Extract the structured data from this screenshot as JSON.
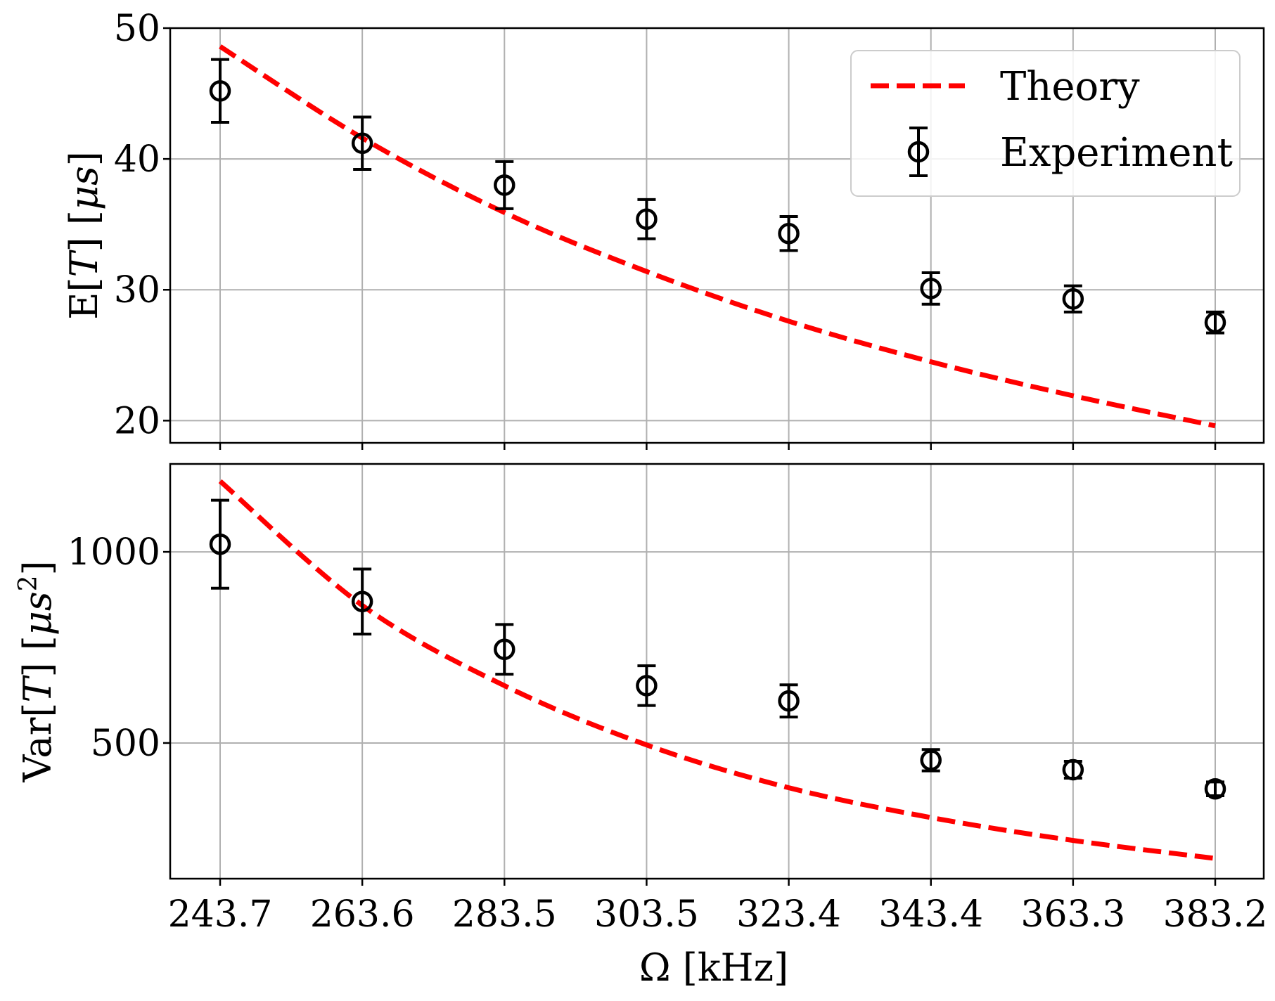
{
  "chart_data": [
    {
      "type": "scatter",
      "panel": "top",
      "ylabel": "E[T] [μs]",
      "ylim": [
        18.3,
        50
      ],
      "yticks": [
        20,
        30,
        40,
        50
      ],
      "ytick_labels": [
        "20",
        "30",
        "40",
        "50"
      ],
      "grid": true,
      "legend_position": "top-right",
      "x": [
        243.7,
        263.6,
        283.5,
        303.5,
        323.4,
        343.4,
        363.3,
        383.2
      ],
      "series": [
        {
          "name": "Theory",
          "kind": "line",
          "style": "dashed",
          "color": "#ff0000",
          "x": [
            243.7,
            263.6,
            283.5,
            303.5,
            323.4,
            343.4,
            363.3,
            383.2
          ],
          "y": [
            48.6,
            41.6,
            35.9,
            31.4,
            27.6,
            24.5,
            21.9,
            19.6
          ]
        },
        {
          "name": "Experiment",
          "kind": "errorbar",
          "marker": "circle-open",
          "color": "#000000",
          "x": [
            243.7,
            263.6,
            283.5,
            303.5,
            323.4,
            343.4,
            363.3,
            383.2
          ],
          "y": [
            45.2,
            41.2,
            38.0,
            35.4,
            34.3,
            30.1,
            29.3,
            27.5
          ],
          "yerr": [
            2.4,
            2.0,
            1.8,
            1.5,
            1.3,
            1.2,
            1.0,
            0.8
          ]
        }
      ]
    },
    {
      "type": "scatter",
      "panel": "bottom",
      "ylabel": "Var[T] [μs²]",
      "xlabel": "Ω [kHz]",
      "ylim": [
        145,
        1230
      ],
      "yticks": [
        500,
        1000
      ],
      "ytick_labels": [
        "500",
        "1000"
      ],
      "grid": true,
      "x": [
        243.7,
        263.6,
        283.5,
        303.5,
        323.4,
        343.4,
        363.3,
        383.2
      ],
      "xtick_labels": [
        "243.7",
        "263.6",
        "283.5",
        "303.5",
        "323.4",
        "343.4",
        "363.3",
        "383.2"
      ],
      "series": [
        {
          "name": "Theory",
          "kind": "line",
          "style": "dashed",
          "color": "#ff0000",
          "x": [
            243.7,
            263.6,
            283.5,
            303.5,
            323.4,
            343.4,
            363.3,
            383.2
          ],
          "y": [
            1185,
            860,
            650,
            495,
            383,
            305,
            245,
            198
          ]
        },
        {
          "name": "Experiment",
          "kind": "errorbar",
          "marker": "circle-open",
          "color": "#000000",
          "x": [
            243.7,
            263.6,
            283.5,
            303.5,
            323.4,
            343.4,
            363.3,
            383.2
          ],
          "y": [
            1020,
            870,
            745,
            650,
            610,
            455,
            430,
            380
          ],
          "yerr": [
            115,
            85,
            65,
            52,
            42,
            28,
            22,
            18
          ]
        }
      ]
    }
  ],
  "legend": {
    "theory_label": "Theory",
    "experiment_label": "Experiment"
  },
  "axes": {
    "top_ylabel_prefix": "E[",
    "top_ylabel_var": "T",
    "top_ylabel_suffix": "] [",
    "top_ylabel_unit": "μs",
    "top_ylabel_close": "]",
    "bottom_ylabel_prefix": "Var[",
    "bottom_ylabel_var": "T",
    "bottom_ylabel_suffix": "] [",
    "bottom_ylabel_unit": "μs",
    "bottom_ylabel_exp": "2",
    "bottom_ylabel_close": "]",
    "xlabel_symbol": "Ω",
    "xlabel_unit": " [kHz]"
  }
}
